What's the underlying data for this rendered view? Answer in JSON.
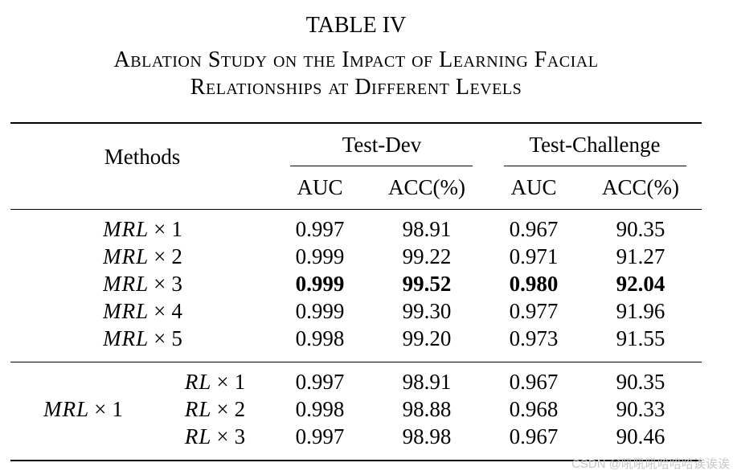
{
  "table": {
    "label": "TABLE IV",
    "caption_line1": "Ablation Study on the Impact of Learning Facial",
    "caption_line2": "Relationships at Different Levels",
    "headers": {
      "methods": "Methods",
      "group_dev": "Test-Dev",
      "group_challenge": "Test-Challenge",
      "auc": "AUC",
      "acc": "ACC(%)"
    },
    "section1": [
      {
        "base": "MRL",
        "op": "×",
        "k": "1",
        "dev_auc": "0.997",
        "dev_acc": "98.91",
        "ch_auc": "0.967",
        "ch_acc": "90.35",
        "bold": false
      },
      {
        "base": "MRL",
        "op": "×",
        "k": "2",
        "dev_auc": "0.999",
        "dev_acc": "99.22",
        "ch_auc": "0.971",
        "ch_acc": "91.27",
        "bold": false
      },
      {
        "base": "MRL",
        "op": "×",
        "k": "3",
        "dev_auc": "0.999",
        "dev_acc": "99.52",
        "ch_auc": "0.980",
        "ch_acc": "92.04",
        "bold": true
      },
      {
        "base": "MRL",
        "op": "×",
        "k": "4",
        "dev_auc": "0.999",
        "dev_acc": "99.30",
        "ch_auc": "0.977",
        "ch_acc": "91.96",
        "bold": false
      },
      {
        "base": "MRL",
        "op": "×",
        "k": "5",
        "dev_auc": "0.998",
        "dev_acc": "99.20",
        "ch_auc": "0.973",
        "ch_acc": "91.55",
        "bold": false
      }
    ],
    "section2": {
      "group": {
        "base": "MRL",
        "op": "×",
        "k": "1"
      },
      "rows": [
        {
          "base": "RL",
          "op": "×",
          "k": "1",
          "dev_auc": "0.997",
          "dev_acc": "98.91",
          "ch_auc": "0.967",
          "ch_acc": "90.35"
        },
        {
          "base": "RL",
          "op": "×",
          "k": "2",
          "dev_auc": "0.998",
          "dev_acc": "98.88",
          "ch_auc": "0.968",
          "ch_acc": "90.33"
        },
        {
          "base": "RL",
          "op": "×",
          "k": "3",
          "dev_auc": "0.997",
          "dev_acc": "98.98",
          "ch_auc": "0.967",
          "ch_acc": "90.46"
        }
      ]
    }
  },
  "watermark": "CSDN @吼吼吼哈哈哈诶诶诶"
}
